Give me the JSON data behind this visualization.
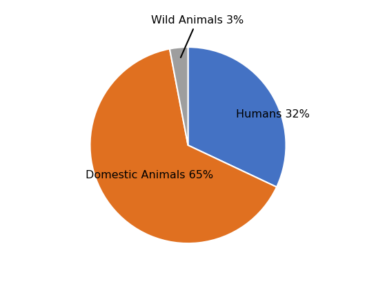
{
  "labels": [
    "Humans",
    "Domestic Animals",
    "Wild Animals"
  ],
  "values": [
    32,
    65,
    3
  ],
  "colors": [
    "#4472C4",
    "#E07020",
    "#9E9E9E"
  ],
  "label_texts": [
    "Humans 32%",
    "Domestic Animals 65%",
    "Wild Animals 3%"
  ],
  "startangle": 90,
  "background_color": "#ffffff",
  "figsize": [
    5.45,
    4.08
  ],
  "dpi": 100,
  "annotation_fontsize": 11.5
}
